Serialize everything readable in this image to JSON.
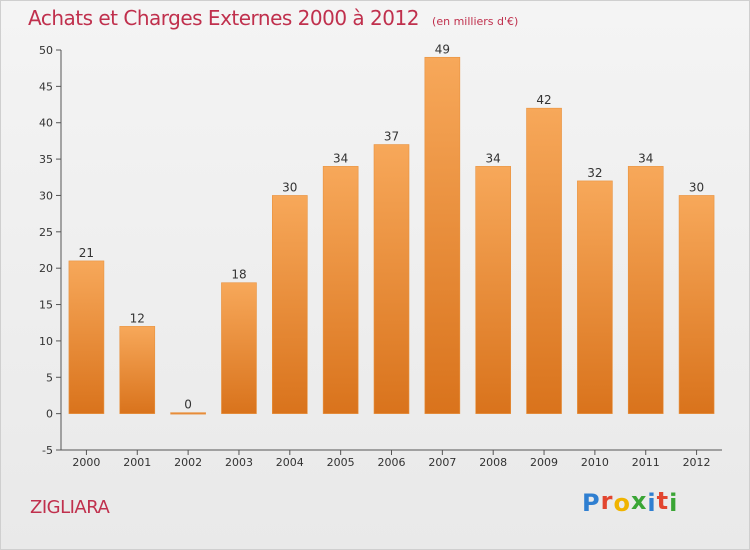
{
  "header": {
    "title": "Achats et Charges Externes 2000 à 2012",
    "unit": "(en milliers d'€)"
  },
  "footer": {
    "place": "ZIGLIARA",
    "brand_letters": [
      "P",
      "r",
      "o",
      "x",
      "i",
      "t",
      "i"
    ],
    "brand_colors": [
      "#2f7fd1",
      "#e2452f",
      "#f0b400",
      "#3aa535",
      "#2f7fd1",
      "#e2452f",
      "#3aa535"
    ]
  },
  "colors": {
    "bar_top": "#f7a85a",
    "bar_bottom": "#d9731c",
    "title": "#c0304d"
  },
  "chart_data": {
    "type": "bar",
    "categories": [
      "2000",
      "2001",
      "2002",
      "2003",
      "2004",
      "2005",
      "2006",
      "2007",
      "2008",
      "2009",
      "2010",
      "2011",
      "2012"
    ],
    "values": [
      21,
      12,
      0,
      18,
      30,
      34,
      37,
      49,
      34,
      42,
      32,
      34,
      30
    ],
    "title": "Achats et Charges Externes 2000 à 2012",
    "subtitle": "(en milliers d'€)",
    "ylim": [
      -5,
      50
    ],
    "yticks": [
      -5,
      0,
      5,
      10,
      15,
      20,
      25,
      30,
      35,
      40,
      45,
      50
    ],
    "grid": false,
    "data_labels": true
  }
}
